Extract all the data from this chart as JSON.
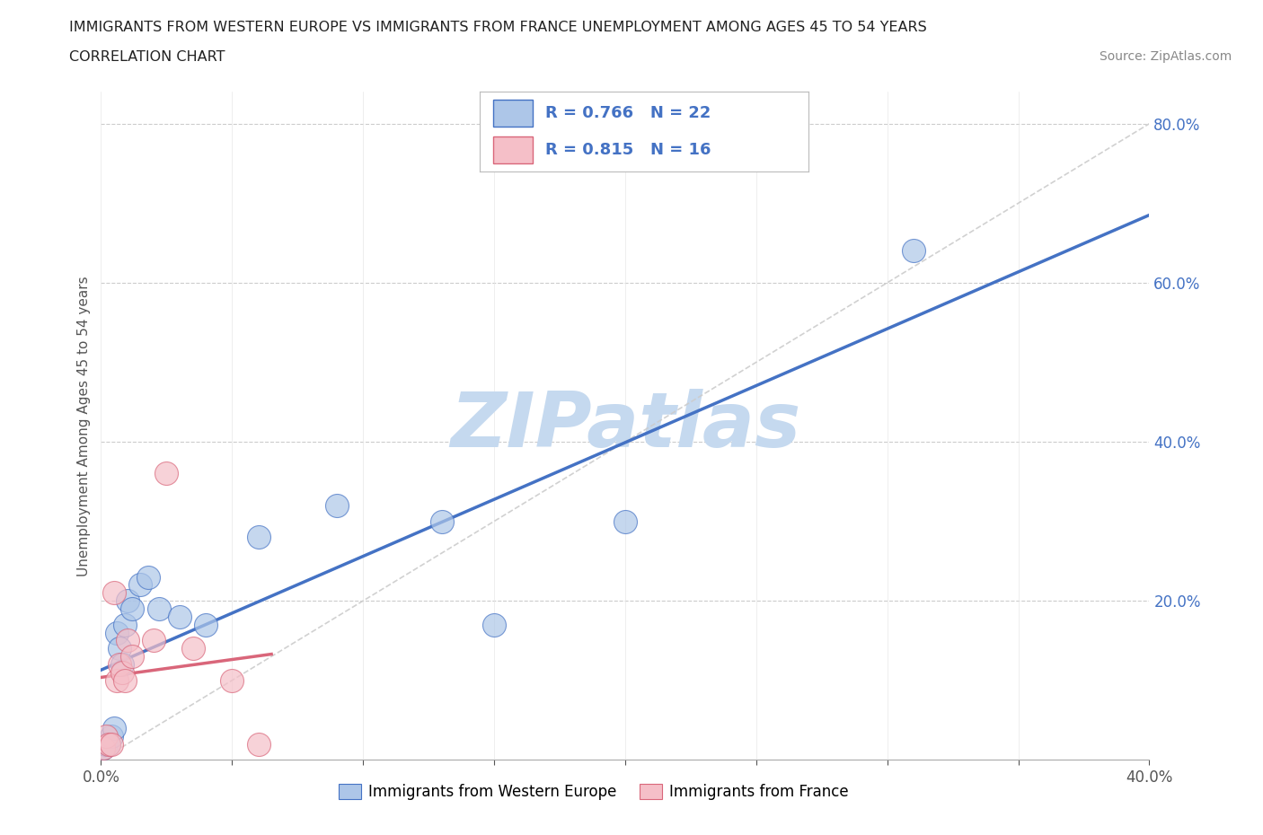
{
  "title_line1": "IMMIGRANTS FROM WESTERN EUROPE VS IMMIGRANTS FROM FRANCE UNEMPLOYMENT AMONG AGES 45 TO 54 YEARS",
  "title_line2": "CORRELATION CHART",
  "source": "Source: ZipAtlas.com",
  "ylabel": "Unemployment Among Ages 45 to 54 years",
  "xlim": [
    0.0,
    0.4
  ],
  "ylim": [
    0.0,
    0.84
  ],
  "x_ticks_minor": [
    0.05,
    0.1,
    0.15,
    0.2,
    0.25,
    0.3,
    0.35
  ],
  "x_ticks_labeled": [
    0.0,
    0.4
  ],
  "y_ticks": [
    0.2,
    0.4,
    0.6,
    0.8
  ],
  "R_blue": 0.766,
  "N_blue": 22,
  "R_pink": 0.815,
  "N_pink": 16,
  "blue_scatter_color": "#adc6e8",
  "blue_line_color": "#4472c4",
  "pink_scatter_color": "#f5bfc8",
  "pink_line_color": "#d9667a",
  "tick_label_color": "#4472c4",
  "scatter_blue_x": [
    0.001,
    0.002,
    0.003,
    0.004,
    0.005,
    0.006,
    0.007,
    0.008,
    0.009,
    0.01,
    0.012,
    0.015,
    0.018,
    0.022,
    0.03,
    0.04,
    0.06,
    0.09,
    0.13,
    0.15,
    0.2,
    0.31
  ],
  "scatter_blue_y": [
    0.015,
    0.02,
    0.02,
    0.03,
    0.04,
    0.16,
    0.14,
    0.12,
    0.17,
    0.2,
    0.19,
    0.22,
    0.23,
    0.19,
    0.18,
    0.17,
    0.28,
    0.32,
    0.3,
    0.17,
    0.3,
    0.64
  ],
  "scatter_pink_x": [
    0.001,
    0.002,
    0.003,
    0.004,
    0.005,
    0.006,
    0.007,
    0.008,
    0.009,
    0.01,
    0.012,
    0.02,
    0.025,
    0.035,
    0.05,
    0.06
  ],
  "scatter_pink_y": [
    0.015,
    0.03,
    0.02,
    0.02,
    0.21,
    0.1,
    0.12,
    0.11,
    0.1,
    0.15,
    0.13,
    0.15,
    0.36,
    0.14,
    0.1,
    0.02
  ],
  "background_color": "#ffffff",
  "grid_color": "#cccccc",
  "watermark_color": "#c5d9ef",
  "ref_line_color": "#cccccc"
}
